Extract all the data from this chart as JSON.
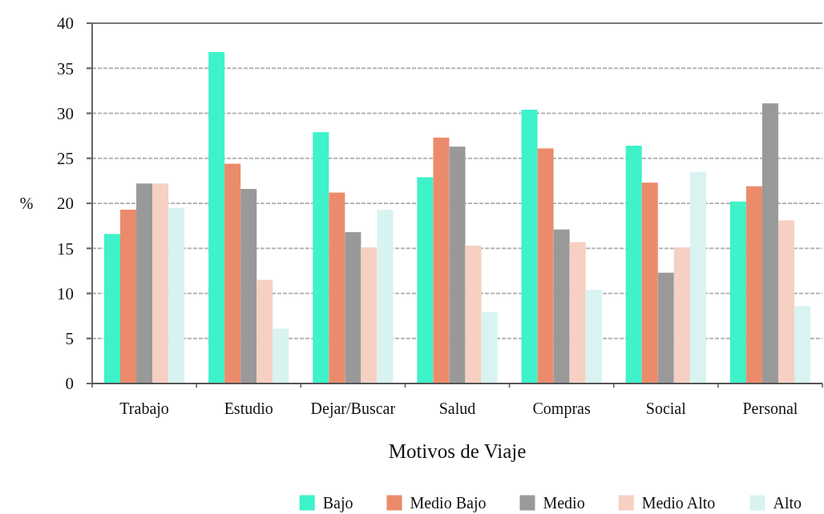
{
  "chart_data": {
    "type": "bar",
    "xlabel": "Motivos de Viaje",
    "ylabel": "%",
    "categories": [
      "Trabajo",
      "Estudio",
      "Dejar/Buscar",
      "Salud",
      "Compras",
      "Social",
      "Personal"
    ],
    "series": [
      {
        "name": "Bajo",
        "color": "#3ef2c9",
        "values": [
          16.6,
          36.8,
          27.9,
          22.9,
          30.4,
          26.4,
          20.2
        ]
      },
      {
        "name": "Medio Bajo",
        "color": "#ec8b6b",
        "values": [
          19.3,
          24.4,
          21.2,
          27.3,
          26.1,
          22.3,
          21.9
        ]
      },
      {
        "name": "Medio",
        "color": "#999999",
        "values": [
          22.2,
          21.6,
          16.8,
          26.3,
          17.1,
          12.3,
          31.1
        ]
      },
      {
        "name": "Medio Alto",
        "color": "#f5d0c3",
        "values": [
          22.2,
          11.5,
          15.1,
          15.3,
          15.7,
          15.1,
          18.1
        ]
      },
      {
        "name": "Alto",
        "color": "#d8f3f0",
        "values": [
          19.5,
          6.1,
          19.3,
          7.9,
          10.4,
          23.5,
          8.6
        ]
      }
    ],
    "ylim": [
      0,
      40
    ],
    "yticks": [
      0,
      5,
      10,
      15,
      20,
      25,
      30,
      35,
      40
    ],
    "grid": "y",
    "legend": "bottom"
  }
}
